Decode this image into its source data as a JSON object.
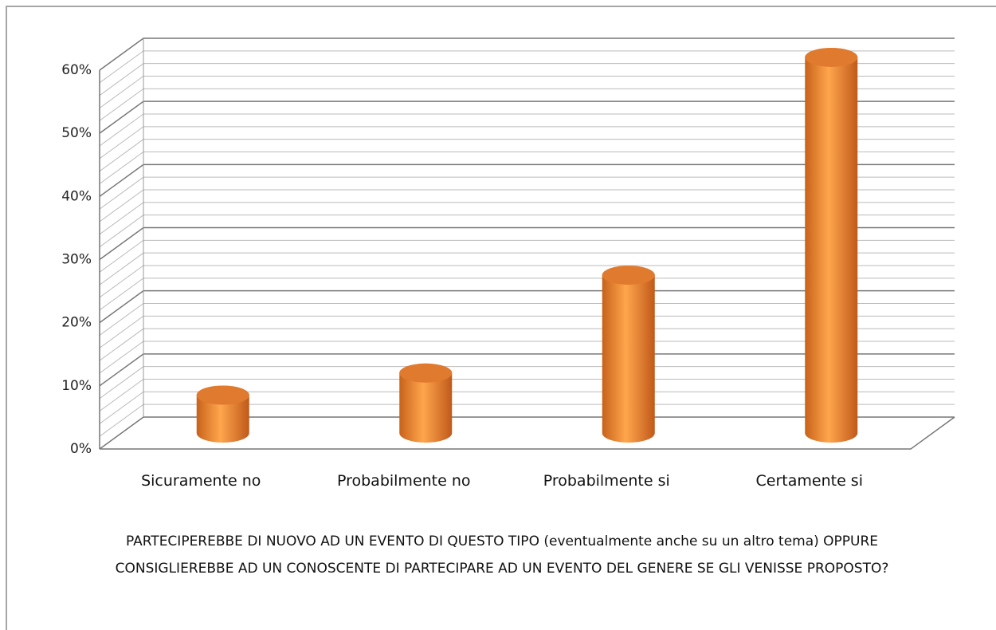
{
  "chart_data": {
    "type": "bar3d",
    "title": "PARTECIPEREBBE DI NUOVO AD UN EVENTO DI QUESTO TIPO (eventualmente anche su un altro tema) OPPURE CONSIGLIEREBBE AD UN CONOSCENTE DI PARTECIPARE AD UN EVENTO DEL GENERE SE GLI VENISSE PROPOSTO?",
    "categories": [
      "Sicuramente no",
      "Probabilmente no",
      "Probabilmente si",
      "Certamente si"
    ],
    "values": [
      6,
      9.5,
      25,
      59.5
    ],
    "color": "#f79646",
    "ylim": [
      0,
      60
    ],
    "yticks": [
      {
        "value": 0,
        "label": "0%"
      },
      {
        "value": 10,
        "label": "10%"
      },
      {
        "value": 20,
        "label": "20%"
      },
      {
        "value": 30,
        "label": "30%"
      },
      {
        "value": 40,
        "label": "40%"
      },
      {
        "value": 50,
        "label": "50%"
      },
      {
        "value": 60,
        "label": "60%"
      }
    ],
    "grid": true
  }
}
